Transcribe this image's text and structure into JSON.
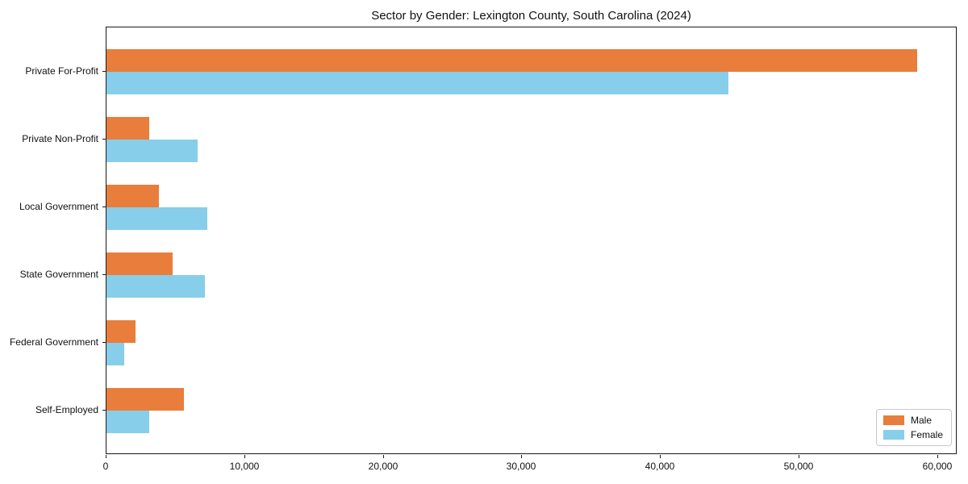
{
  "chart_data": {
    "type": "bar",
    "orientation": "horizontal",
    "title": "Sector by Gender: Lexington County, South Carolina (2024)",
    "categories": [
      "Private For-Profit",
      "Private Non-Profit",
      "Local Government",
      "State Government",
      "Federal Government",
      "Self-Employed"
    ],
    "series": [
      {
        "name": "Male",
        "color": "#e87d3c",
        "values": [
          58500,
          3100,
          3800,
          4800,
          2100,
          5600
        ]
      },
      {
        "name": "Female",
        "color": "#87ceeb",
        "values": [
          44900,
          6600,
          7300,
          7100,
          1300,
          3100
        ]
      }
    ],
    "xlim": [
      0,
      61400
    ],
    "xticks": [
      {
        "value": 0,
        "label": "0"
      },
      {
        "value": 10000,
        "label": "10,000"
      },
      {
        "value": 20000,
        "label": "20,000"
      },
      {
        "value": 30000,
        "label": "30,000"
      },
      {
        "value": 40000,
        "label": "40,000"
      },
      {
        "value": 50000,
        "label": "50,000"
      },
      {
        "value": 60000,
        "label": "60,000"
      }
    ],
    "xlabel": "",
    "ylabel": "",
    "grid": false,
    "legend_position": "lower right",
    "plot_background": "#ffffff",
    "spine_color": "#1a1a1a"
  }
}
